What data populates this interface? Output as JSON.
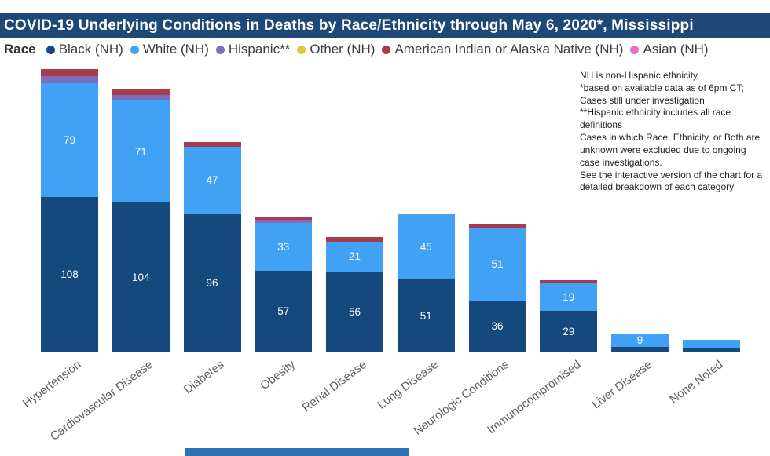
{
  "page": {
    "title": "COVID-19 Underlying Conditions in Deaths by Race/Ethnicity through May 6, 2020*, Mississippi",
    "title_bar_color": "#1E4976",
    "background": "#FFFFFF"
  },
  "legend": {
    "title": "Race"
  },
  "notes": {
    "lines": [
      "NH is non-Hispanic ethnicity",
      "*based on available data as of 6pm CT;",
      "Cases still under investigation",
      "**Hispanic ethnicity includes all race definitions",
      "Cases in which Race, Ethnicity, or Both are unknown were excluded due to ongoing case investigations.",
      "See the interactive version of the chart for a detailed breakdown of each category"
    ]
  },
  "chart_data": {
    "type": "bar",
    "stacked": true,
    "title": "COVID-19 Underlying Conditions in Deaths by Race/Ethnicity through May 6, 2020*, Mississippi",
    "xlabel": "",
    "ylabel": "",
    "grid": false,
    "legend_position": "top",
    "ylim": [
      0,
      200
    ],
    "value_label_min": 9,
    "value_label_color": "#FFFFFF",
    "categories": [
      "Hypertension",
      "Cardiovascular Disease",
      "Diabetes",
      "Obesity",
      "Renal Disease",
      "Lung Disease",
      "Neurologic Conditions",
      "Immunocompromised",
      "Liver Disease",
      "None Noted"
    ],
    "series": [
      {
        "name": "Black (NH)",
        "color": "#15497D",
        "values": [
          108,
          104,
          96,
          57,
          56,
          51,
          36,
          29,
          4,
          3
        ]
      },
      {
        "name": "White (NH)",
        "color": "#41A1F5",
        "values": [
          79,
          71,
          47,
          33,
          21,
          45,
          51,
          19,
          9,
          6
        ]
      },
      {
        "name": "Hispanic**",
        "color": "#7E6CBD",
        "values": [
          5,
          4,
          0,
          2,
          0,
          0,
          0,
          0,
          0,
          0
        ]
      },
      {
        "name": "Other (NH)",
        "color": "#E2C53D",
        "values": [
          0,
          0,
          0,
          0,
          0,
          0,
          0,
          0,
          0,
          0
        ]
      },
      {
        "name": "American Indian or Alaska Native (NH)",
        "color": "#A53B4B",
        "values": [
          5,
          4,
          3,
          2,
          3,
          0,
          2,
          2,
          0,
          0
        ]
      },
      {
        "name": "Asian (NH)",
        "color": "#E871C7",
        "values": [
          0,
          0,
          0,
          0,
          0,
          0,
          0,
          0,
          0,
          0
        ]
      }
    ]
  },
  "footer_scrollbar": {
    "color": "#2E74B5"
  }
}
